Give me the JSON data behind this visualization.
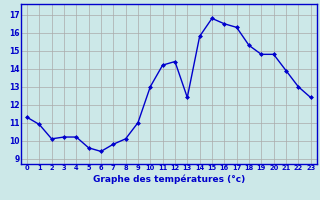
{
  "x": [
    0,
    1,
    2,
    3,
    4,
    5,
    6,
    7,
    8,
    9,
    10,
    11,
    12,
    13,
    14,
    15,
    16,
    17,
    18,
    19,
    20,
    21,
    22,
    23
  ],
  "y": [
    11.3,
    10.9,
    10.1,
    10.2,
    10.2,
    9.6,
    9.4,
    9.8,
    10.1,
    11.0,
    13.0,
    14.2,
    14.4,
    12.4,
    15.8,
    16.8,
    16.5,
    16.3,
    15.3,
    14.8,
    14.8,
    13.9,
    13.0,
    12.4
  ],
  "line_color": "#0000cc",
  "marker": "D",
  "marker_size": 2.0,
  "bg_color": "#cce8e8",
  "grid_color": "#aaaaaa",
  "xlabel": "Graphe des températures (°c)",
  "xlabel_color": "#0000cc",
  "ylabel_ticks": [
    9,
    10,
    11,
    12,
    13,
    14,
    15,
    16,
    17
  ],
  "xtick_labels": [
    "0",
    "1",
    "2",
    "3",
    "4",
    "5",
    "6",
    "7",
    "8",
    "9",
    "10",
    "11",
    "12",
    "13",
    "14",
    "15",
    "16",
    "17",
    "18",
    "19",
    "20",
    "21",
    "22",
    "23"
  ],
  "ylim": [
    8.7,
    17.6
  ],
  "xlim": [
    -0.5,
    23.5
  ],
  "axis_color": "#0000cc",
  "tick_color": "#0000cc",
  "linewidth": 1.0,
  "xlabel_fontsize": 6.5,
  "ytick_fontsize": 5.5,
  "xtick_fontsize": 4.8
}
